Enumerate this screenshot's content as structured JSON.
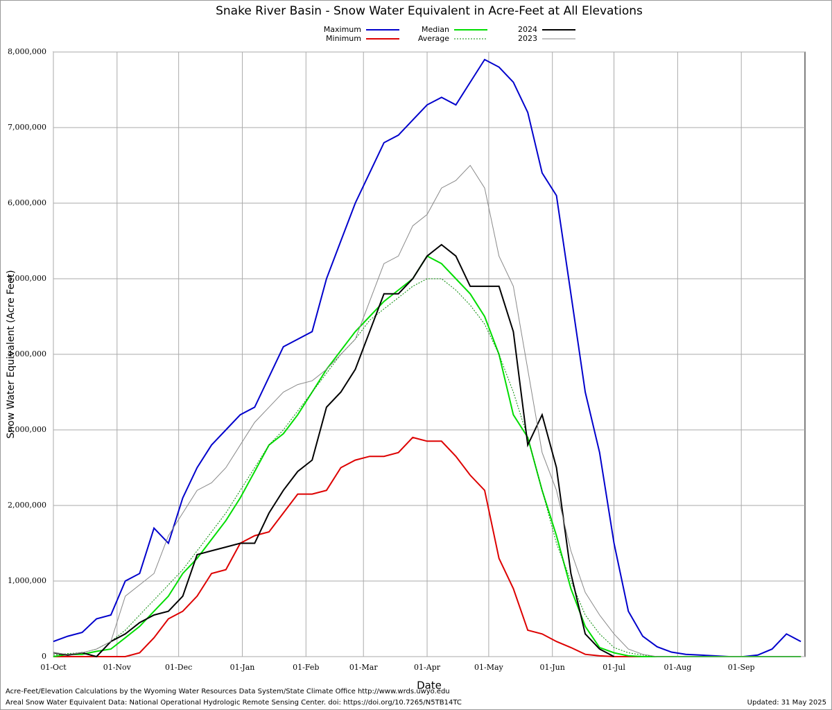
{
  "chart_data": {
    "type": "line",
    "title": "Snake River Basin - Snow Water Equivalent in Acre-Feet at All Elevations",
    "x_label": "Date",
    "y_label": "Snow Water Equivalent (Acre Feet)",
    "notes": [
      "Acre-Feet/Elevation Calculations by the Wyoming Water Resources Data System/State Climate Office http://www.wrds.uwyo.edu",
      "Areal Snow Water Equivalent Data: National Operational Hydrologic Remote Sensing Center. doi: https://doi.org/10.7265/N5TB14TC"
    ],
    "updated": "Updated: 31 May 2025",
    "grid": true,
    "xlim": [
      0,
      366
    ],
    "xticks": [
      {
        "value": 0,
        "label": "01-Oct"
      },
      {
        "value": 31,
        "label": "01-Nov"
      },
      {
        "value": 61,
        "label": "01-Dec"
      },
      {
        "value": 92,
        "label": "01-Jan"
      },
      {
        "value": 123,
        "label": "01-Feb"
      },
      {
        "value": 151,
        "label": "01-Mar"
      },
      {
        "value": 182,
        "label": "01-Apr"
      },
      {
        "value": 212,
        "label": "01-May"
      },
      {
        "value": 243,
        "label": "01-Jun"
      },
      {
        "value": 273,
        "label": "01-Jul"
      },
      {
        "value": 304,
        "label": "01-Aug"
      },
      {
        "value": 335,
        "label": "01-Sep"
      }
    ],
    "ylim": [
      0,
      8000000
    ],
    "yticks": [
      0,
      {
        "value": 1000000,
        "label": "1,000,000"
      },
      {
        "value": 2000000,
        "label": "2,000,000"
      },
      {
        "value": 3000000,
        "label": "3,000,000"
      },
      {
        "value": 4000000,
        "label": "4,000,000"
      },
      {
        "value": 5000000,
        "label": "5,000,000"
      },
      {
        "value": 6000000,
        "label": "6,000,000"
      },
      {
        "value": 7000000,
        "label": "7,000,000"
      },
      {
        "value": 8000000,
        "label": "8,000,000"
      }
    ],
    "x": [
      0,
      7,
      14,
      21,
      28,
      35,
      42,
      49,
      56,
      63,
      70,
      77,
      84,
      91,
      98,
      105,
      112,
      119,
      126,
      133,
      140,
      147,
      154,
      161,
      168,
      175,
      182,
      189,
      196,
      203,
      210,
      217,
      224,
      231,
      238,
      245,
      252,
      259,
      266,
      273,
      280,
      287,
      294,
      301,
      308,
      315,
      322,
      329,
      336,
      343,
      350,
      357,
      364
    ],
    "series": [
      {
        "name": "Maximum",
        "color": "#0000cc",
        "style": "solid",
        "values": [
          200000,
          270000,
          320000,
          500000,
          550000,
          1000000,
          1100000,
          1700000,
          1500000,
          2100000,
          2500000,
          2800000,
          3000000,
          3200000,
          3300000,
          3700000,
          4100000,
          4200000,
          4300000,
          5000000,
          5500000,
          6000000,
          6400000,
          6800000,
          6900000,
          7100000,
          7300000,
          7400000,
          7300000,
          7600000,
          7900000,
          7800000,
          7600000,
          7200000,
          6400000,
          6100000,
          4800000,
          3500000,
          2700000,
          1500000,
          600000,
          270000,
          130000,
          60000,
          30000,
          20000,
          10000,
          0,
          0,
          20000,
          100000,
          300000,
          200000
        ]
      },
      {
        "name": "Minimum",
        "color": "#dd0000",
        "style": "solid",
        "values": [
          0,
          0,
          0,
          0,
          0,
          0,
          50000,
          250000,
          500000,
          600000,
          800000,
          1100000,
          1150000,
          1500000,
          1600000,
          1650000,
          1900000,
          2150000,
          2150000,
          2200000,
          2500000,
          2600000,
          2650000,
          2650000,
          2700000,
          2900000,
          2850000,
          2850000,
          2650000,
          2400000,
          2200000,
          1300000,
          900000,
          350000,
          300000,
          200000,
          120000,
          30000,
          10000,
          0,
          0,
          0,
          0,
          0,
          0,
          0,
          0,
          0,
          0,
          0,
          0,
          0,
          0
        ]
      },
      {
        "name": "Median",
        "color": "#00dd00",
        "style": "solid",
        "values": [
          0,
          30000,
          30000,
          70000,
          100000,
          250000,
          400000,
          600000,
          800000,
          1100000,
          1300000,
          1550000,
          1800000,
          2100000,
          2450000,
          2800000,
          2950000,
          3200000,
          3500000,
          3800000,
          4050000,
          4300000,
          4500000,
          4700000,
          4850000,
          5000000,
          5300000,
          5200000,
          5000000,
          4800000,
          4500000,
          4000000,
          3200000,
          2900000,
          2200000,
          1600000,
          900000,
          400000,
          120000,
          50000,
          10000,
          0,
          0,
          0,
          0,
          0,
          0,
          0,
          0,
          0,
          0,
          0,
          0
        ]
      },
      {
        "name": "Average",
        "color": "#008800",
        "style": "dotted",
        "values": [
          20000,
          40000,
          50000,
          100000,
          200000,
          350000,
          550000,
          750000,
          950000,
          1150000,
          1400000,
          1650000,
          1900000,
          2200000,
          2500000,
          2800000,
          3000000,
          3250000,
          3500000,
          3750000,
          4000000,
          4200000,
          4450000,
          4600000,
          4750000,
          4900000,
          5000000,
          5000000,
          4850000,
          4650000,
          4400000,
          4000000,
          3500000,
          2900000,
          2200000,
          1500000,
          1000000,
          550000,
          300000,
          120000,
          50000,
          20000,
          0,
          0,
          0,
          0,
          0,
          0,
          0,
          0,
          0,
          0,
          0
        ]
      },
      {
        "name": "2024",
        "color": "#000000",
        "style": "solid",
        "values": [
          50000,
          20000,
          50000,
          0,
          200000,
          300000,
          450000,
          550000,
          600000,
          800000,
          1350000,
          1400000,
          1450000,
          1500000,
          1500000,
          1900000,
          2200000,
          2450000,
          2600000,
          3300000,
          3500000,
          3800000,
          4300000,
          4800000,
          4800000,
          5000000,
          5300000,
          5450000,
          5300000,
          4900000,
          4900000,
          4900000,
          4300000,
          2800000,
          3200000,
          2500000,
          1100000,
          300000,
          100000,
          0,
          null,
          null,
          null,
          null,
          null,
          null,
          null,
          null,
          null,
          null,
          null,
          null,
          null
        ]
      },
      {
        "name": "2023",
        "color": "#888888",
        "style": "thin",
        "values": [
          50000,
          30000,
          50000,
          100000,
          200000,
          800000,
          950000,
          1100000,
          1600000,
          1900000,
          2200000,
          2300000,
          2500000,
          2800000,
          3100000,
          3300000,
          3500000,
          3600000,
          3650000,
          3800000,
          4000000,
          4200000,
          4700000,
          5200000,
          5300000,
          5700000,
          5850000,
          6200000,
          6300000,
          6500000,
          6200000,
          5300000,
          4900000,
          3800000,
          2700000,
          2200000,
          1400000,
          850000,
          550000,
          300000,
          100000,
          30000,
          0,
          0,
          0,
          0,
          0,
          0,
          0,
          0,
          0,
          0,
          0
        ]
      }
    ]
  }
}
